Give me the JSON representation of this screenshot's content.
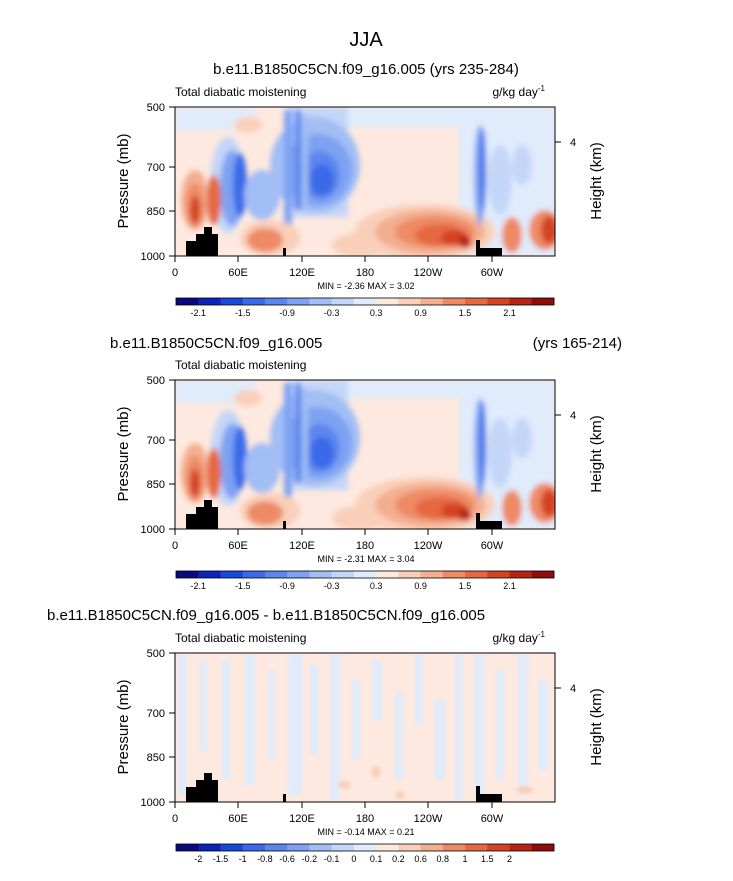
{
  "figure": {
    "title": "JJA"
  },
  "colors": {
    "land": "#000000",
    "scale_a": [
      "#0a0a80",
      "#0c22b8",
      "#1b48dc",
      "#3a6ae8",
      "#5b86ee",
      "#7ea2f2",
      "#a2bef5",
      "#c4d6f8",
      "#e0ebfb",
      "#fde9df",
      "#f9cfb9",
      "#f4ae90",
      "#ee8a66",
      "#e56840",
      "#d44324",
      "#b82313",
      "#8e0c0c"
    ],
    "scale_b": [
      "#0a0a80",
      "#0c22b8",
      "#1b48dc",
      "#3a6ae8",
      "#5b86ee",
      "#7ea2f2",
      "#a2bef5",
      "#c4d6f8",
      "#e0ebfb",
      "#fde9df",
      "#f9cfb9",
      "#f4ae90",
      "#ee8a66",
      "#e56840",
      "#d44324",
      "#b82313",
      "#8e0c0c"
    ]
  },
  "chart_data": [
    {
      "type": "heatmap",
      "title": "b.e11.B1850C5CN.f09_g16.005 (yrs 235-284)",
      "left_title": "Total diabatic moistening",
      "units": "g/kg day",
      "units_exp": "-1",
      "ylabel": "Pressure (mb)",
      "y2label": "Height (km)",
      "x_ticks": [
        "0",
        "60E",
        "120E",
        "180",
        "120W",
        "60W"
      ],
      "y_ticks": [
        "500",
        "700",
        "850",
        "1000"
      ],
      "y2_ticks": [
        "4"
      ],
      "ylim": [
        1000,
        500
      ],
      "stats": "MIN = -2.36  MAX =  3.02",
      "colorbar_labels": [
        "-2.1",
        "-1.5",
        "-0.9",
        "-0.3",
        "0.3",
        "0.9",
        "1.5",
        "2.1"
      ]
    },
    {
      "type": "heatmap",
      "title": "b.e11.B1850C5CN.f09_g16.005",
      "years": "(yrs 165-214)",
      "left_title": "Total diabatic moistening",
      "ylabel": "Pressure (mb)",
      "y2label": "Height (km)",
      "x_ticks": [
        "0",
        "60E",
        "120E",
        "180",
        "120W",
        "60W"
      ],
      "y_ticks": [
        "500",
        "700",
        "850",
        "1000"
      ],
      "y2_ticks": [
        "4"
      ],
      "ylim": [
        1000,
        500
      ],
      "stats": "MIN = -2.31  MAX =  3.04",
      "colorbar_labels": [
        "-2.1",
        "-1.5",
        "-0.9",
        "-0.3",
        "0.3",
        "0.9",
        "1.5",
        "2.1"
      ]
    },
    {
      "type": "heatmap",
      "title": "b.e11.B1850C5CN.f09_g16.005 - b.e11.B1850C5CN.f09_g16.005",
      "left_title": "Total diabatic moistening",
      "units": "g/kg day",
      "units_exp": "-1",
      "ylabel": "Pressure (mb)",
      "y2label": "Height (km)",
      "x_ticks": [
        "0",
        "60E",
        "120E",
        "180",
        "120W",
        "60W"
      ],
      "y_ticks": [
        "500",
        "700",
        "850",
        "1000"
      ],
      "y2_ticks": [
        "4"
      ],
      "ylim": [
        1000,
        500
      ],
      "stats": "MIN = -0.14  MAX =  0.21",
      "colorbar_labels": [
        "-2",
        "-1.5",
        "-1",
        "-0.8",
        "-0.6",
        "-0.2",
        "-0.1",
        "0",
        "0.1",
        "0.2",
        "0.6",
        "0.8",
        "1",
        "1.5",
        "2"
      ]
    }
  ]
}
